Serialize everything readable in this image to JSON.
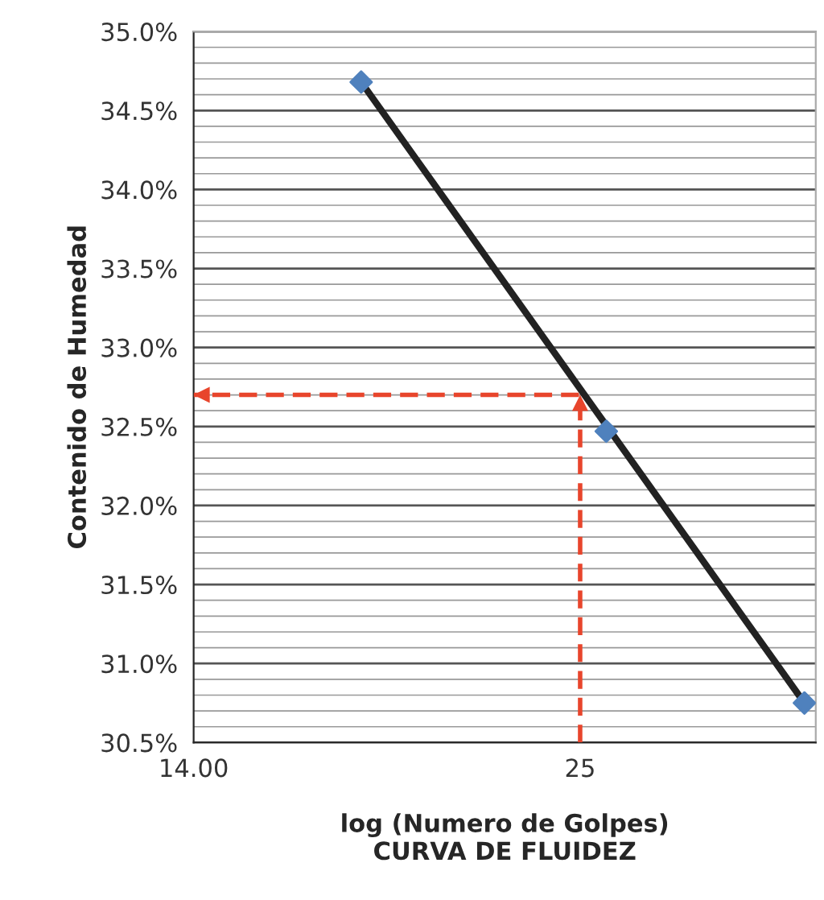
{
  "chart_data": {
    "type": "scatter",
    "title": "CURVA DE FLUIDEZ",
    "xlabel": "log (Numero de Golpes)",
    "ylabel": "Contenido de Humedad",
    "log": "x",
    "grid": "y",
    "marker": "diamond",
    "xlim": [
      14,
      35.6
    ],
    "xticks": [
      {
        "value": 14,
        "label": "14.00"
      },
      {
        "value": 25,
        "label": "25"
      }
    ],
    "ylim": [
      30.5,
      35.0
    ],
    "yticks": [
      {
        "value": 30.5,
        "label": "30.5%"
      },
      {
        "value": 31.0,
        "label": "31.0%"
      },
      {
        "value": 31.5,
        "label": "31.5%"
      },
      {
        "value": 32.0,
        "label": "32.0%"
      },
      {
        "value": 32.5,
        "label": "32.5%"
      },
      {
        "value": 33.0,
        "label": "33.0%"
      },
      {
        "value": 33.5,
        "label": "33.5%"
      },
      {
        "value": 34.0,
        "label": "34.0%"
      },
      {
        "value": 34.5,
        "label": "34.5%"
      },
      {
        "value": 35.0,
        "label": "35.0%"
      }
    ],
    "series": [
      {
        "type": "line",
        "color": "#222222",
        "marker": "none",
        "line_style": "solid",
        "x": [
          18.0,
          35.0
        ],
        "values": [
          34.68,
          30.75
        ]
      },
      {
        "color": "#4f81bd",
        "x": [
          18.0,
          26.0,
          35.0
        ],
        "values": [
          34.68,
          32.47,
          30.75
        ]
      },
      {
        "type": "line",
        "color": "#e8452c",
        "marker": "none",
        "line_style": "dashed",
        "x": [
          25,
          25,
          14
        ],
        "values": [
          30.5,
          32.7,
          32.7
        ]
      }
    ]
  }
}
